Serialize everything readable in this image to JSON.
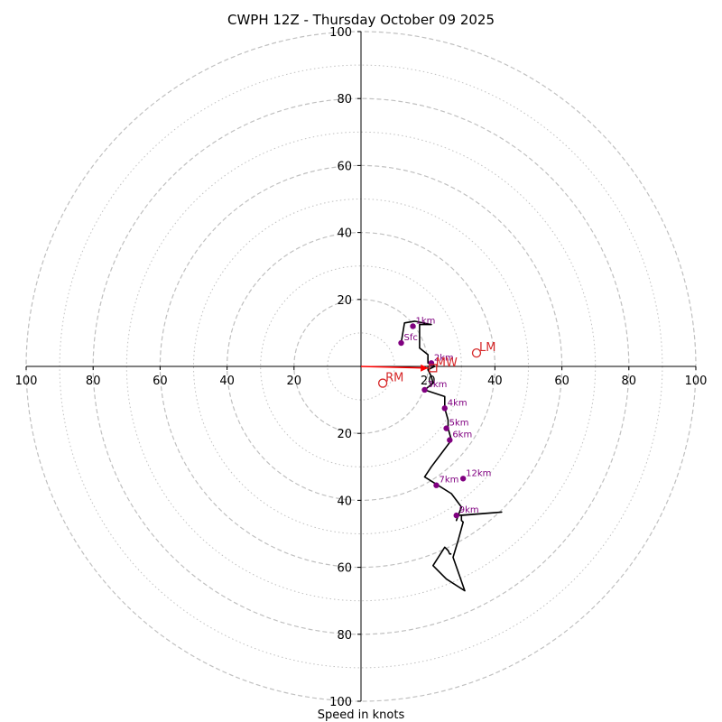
{
  "chart_data": {
    "type": "hodograph",
    "title": "CWPH 12Z - Thursday October 09 2025",
    "xlabel": "Speed in knots",
    "range": [
      -100,
      100
    ],
    "ring_major": [
      20,
      40,
      60,
      80,
      100
    ],
    "ring_minor": [
      10,
      30,
      50,
      70,
      90
    ],
    "tick_labels": [
      "100",
      "80",
      "60",
      "40",
      "20",
      "20",
      "40",
      "60",
      "80",
      "100"
    ],
    "tick_values": [
      -100,
      -80,
      -60,
      -40,
      -20,
      20,
      40,
      60,
      80,
      100
    ],
    "hodograph_trace": [
      [
        12,
        7
      ],
      [
        13,
        13
      ],
      [
        16,
        13.5
      ],
      [
        21,
        12.5
      ],
      [
        17.5,
        12.5
      ],
      [
        17.5,
        5.5
      ],
      [
        20,
        3.5
      ],
      [
        20,
        1
      ],
      [
        21,
        0.8
      ],
      [
        22,
        0
      ],
      [
        20,
        -1
      ],
      [
        21,
        -3
      ],
      [
        21.5,
        -5
      ],
      [
        19,
        -7
      ],
      [
        25,
        -9
      ],
      [
        25,
        -12.5
      ],
      [
        26,
        -16
      ],
      [
        26,
        -18.5
      ],
      [
        27,
        -22
      ],
      [
        21,
        -30
      ],
      [
        19,
        -33
      ],
      [
        23,
        -35.5
      ],
      [
        27,
        -38
      ],
      [
        30,
        -42
      ],
      [
        28.5,
        -46
      ],
      [
        29,
        -44.5
      ],
      [
        42,
        -43.5
      ],
      [
        30,
        -44.5
      ],
      [
        30,
        -46
      ],
      [
        30.5,
        -46.5
      ],
      [
        29,
        -52
      ],
      [
        27.5,
        -57
      ],
      [
        31,
        -67
      ],
      [
        25.5,
        -63.5
      ],
      [
        21.5,
        -59.5
      ],
      [
        25,
        -54
      ],
      [
        26,
        -55
      ],
      [
        26.5,
        -56
      ],
      [
        27,
        -56
      ]
    ],
    "height_markers": [
      {
        "label": "Sfc",
        "x": 12,
        "y": 7
      },
      {
        "label": "1km",
        "x": 15.5,
        "y": 12
      },
      {
        "label": "2km",
        "x": 21,
        "y": 1
      },
      {
        "label": "3km",
        "x": 19,
        "y": -7
      },
      {
        "label": "4km",
        "x": 25,
        "y": -12.5
      },
      {
        "label": "5km",
        "x": 25.5,
        "y": -18.5
      },
      {
        "label": "6km",
        "x": 26.5,
        "y": -22
      },
      {
        "label": "7km",
        "x": 22.5,
        "y": -35.5
      },
      {
        "label": "9km",
        "x": 28.5,
        "y": -44.5
      },
      {
        "label": "12km",
        "x": 30.5,
        "y": -33.5
      }
    ],
    "storm_motion": [
      {
        "label": "LM",
        "x": 34.5,
        "y": 4
      },
      {
        "label": "RM",
        "x": 6.5,
        "y": -5
      },
      {
        "label": "MW",
        "x": 21.5,
        "y": -0.5
      }
    ],
    "shear_vector": {
      "from": [
        0,
        0
      ],
      "to": [
        20,
        -0.5
      ]
    },
    "colors": {
      "trace": "#000000",
      "markers": "#800080",
      "storm_motion": "#d62728",
      "shear_vector": "#ff0000",
      "rings": "#c0c0c0"
    }
  }
}
